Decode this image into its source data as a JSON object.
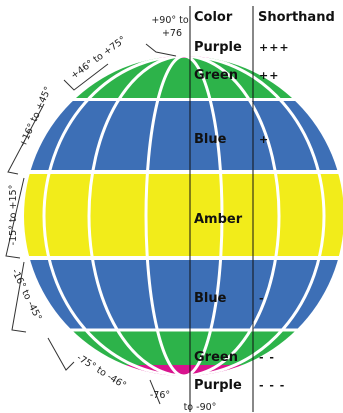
{
  "headers": {
    "color": "Color",
    "shorthand": "Shorthand"
  },
  "colors": {
    "purple": "#d8148e",
    "green": "#2db34a",
    "blue": "#3d6fb6",
    "amber": "#f2ec1a"
  },
  "bands": [
    {
      "name": "Purple",
      "shorthand": "+++",
      "color_key": "purple"
    },
    {
      "name": "Green",
      "shorthand": "++",
      "color_key": "green"
    },
    {
      "name": "Blue",
      "shorthand": "+",
      "color_key": "blue"
    },
    {
      "name": "Amber",
      "shorthand": "",
      "color_key": "amber"
    },
    {
      "name": "Blue",
      "shorthand": "-",
      "color_key": "blue"
    },
    {
      "name": "Green",
      "shorthand": "- -",
      "color_key": "green"
    },
    {
      "name": "Purple",
      "shorthand": "- - -",
      "color_key": "purple"
    }
  ],
  "ranges": [
    {
      "line1": "+90° to",
      "line2": "+76"
    },
    {
      "line1": "+46° to +75°",
      "line2": ""
    },
    {
      "line1": "+16° to +45°",
      "line2": ""
    },
    {
      "line1": "-15° to +15°",
      "line2": ""
    },
    {
      "line1": "-16° to -45°",
      "line2": ""
    },
    {
      "line1": "-75° to -46°",
      "line2": ""
    },
    {
      "line1": "-76°",
      "line2": "to -90°"
    }
  ]
}
